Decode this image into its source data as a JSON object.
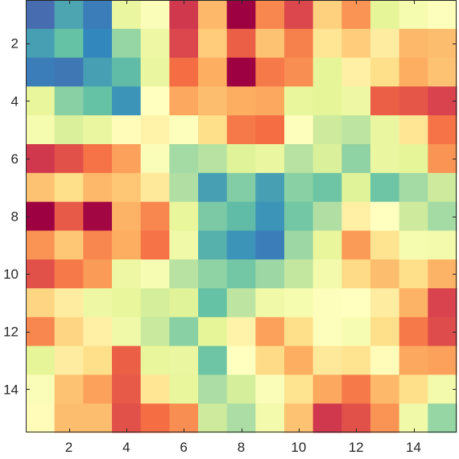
{
  "chart_data": {
    "type": "heatmap",
    "title": "",
    "xlabel": "",
    "ylabel": "",
    "colormap": "spectral-like",
    "color_stops": [
      "#5e4fa2",
      "#3288bd",
      "#66c2a5",
      "#abdda4",
      "#e6f598",
      "#ffffbf",
      "#fee08b",
      "#fdae61",
      "#f46d43",
      "#d53e4f",
      "#9e0142"
    ],
    "x": [
      1,
      2,
      3,
      4,
      5,
      6,
      7,
      8,
      9,
      10,
      11,
      12,
      13,
      14,
      15
    ],
    "y": [
      1,
      2,
      3,
      4,
      5,
      6,
      7,
      8,
      9,
      10,
      11,
      12,
      13,
      14,
      15
    ],
    "x_ticks": [
      2,
      4,
      6,
      8,
      10,
      12,
      14
    ],
    "y_ticks": [
      2,
      4,
      6,
      8,
      10,
      12,
      14
    ],
    "xlim": [
      0.5,
      15.5
    ],
    "ylim": [
      0.5,
      15.5
    ],
    "y_direction": "reverse",
    "clim": [
      0,
      1
    ],
    "values": [
      [
        0.05,
        0.15,
        0.08,
        0.42,
        0.48,
        0.91,
        0.68,
        1.0,
        0.76,
        0.88,
        0.63,
        0.74,
        0.4,
        0.46,
        0.49
      ],
      [
        0.14,
        0.2,
        0.1,
        0.27,
        0.43,
        0.88,
        0.64,
        0.83,
        0.66,
        0.77,
        0.58,
        0.64,
        0.56,
        0.68,
        0.67
      ],
      [
        0.08,
        0.07,
        0.14,
        0.19,
        0.42,
        0.8,
        0.7,
        1.0,
        0.78,
        0.75,
        0.4,
        0.55,
        0.6,
        0.7,
        0.66
      ],
      [
        0.41,
        0.25,
        0.2,
        0.12,
        0.5,
        0.71,
        0.67,
        0.7,
        0.71,
        0.41,
        0.4,
        0.43,
        0.83,
        0.85,
        0.89
      ],
      [
        0.46,
        0.38,
        0.42,
        0.51,
        0.54,
        0.49,
        0.6,
        0.78,
        0.8,
        0.49,
        0.36,
        0.33,
        0.42,
        0.58,
        0.79
      ],
      [
        0.91,
        0.86,
        0.79,
        0.72,
        0.48,
        0.29,
        0.32,
        0.39,
        0.42,
        0.32,
        0.38,
        0.26,
        0.42,
        0.4,
        0.74
      ],
      [
        0.66,
        0.6,
        0.68,
        0.65,
        0.57,
        0.31,
        0.14,
        0.24,
        0.14,
        0.25,
        0.21,
        0.39,
        0.21,
        0.29,
        0.36
      ],
      [
        1.0,
        0.84,
        0.99,
        0.69,
        0.76,
        0.41,
        0.23,
        0.19,
        0.12,
        0.22,
        0.31,
        0.55,
        0.5,
        0.36,
        0.29
      ],
      [
        0.74,
        0.65,
        0.76,
        0.7,
        0.79,
        0.44,
        0.17,
        0.12,
        0.08,
        0.28,
        0.41,
        0.73,
        0.59,
        0.46,
        0.45
      ],
      [
        0.86,
        0.78,
        0.73,
        0.43,
        0.47,
        0.32,
        0.26,
        0.22,
        0.28,
        0.34,
        0.45,
        0.61,
        0.67,
        0.6,
        0.69
      ],
      [
        0.62,
        0.56,
        0.43,
        0.41,
        0.37,
        0.39,
        0.2,
        0.33,
        0.44,
        0.46,
        0.49,
        0.5,
        0.56,
        0.69,
        0.89
      ],
      [
        0.76,
        0.62,
        0.55,
        0.44,
        0.35,
        0.25,
        0.4,
        0.54,
        0.72,
        0.6,
        0.49,
        0.47,
        0.6,
        0.78,
        0.87
      ],
      [
        0.4,
        0.56,
        0.6,
        0.83,
        0.41,
        0.42,
        0.21,
        0.5,
        0.61,
        0.7,
        0.57,
        0.59,
        0.51,
        0.71,
        0.72
      ],
      [
        0.48,
        0.66,
        0.72,
        0.84,
        0.58,
        0.41,
        0.3,
        0.37,
        0.48,
        0.59,
        0.71,
        0.78,
        0.68,
        0.6,
        0.45
      ],
      [
        0.51,
        0.67,
        0.67,
        0.86,
        0.8,
        0.75,
        0.36,
        0.3,
        0.45,
        0.66,
        0.91,
        0.86,
        0.74,
        0.44,
        0.27
      ]
    ]
  }
}
